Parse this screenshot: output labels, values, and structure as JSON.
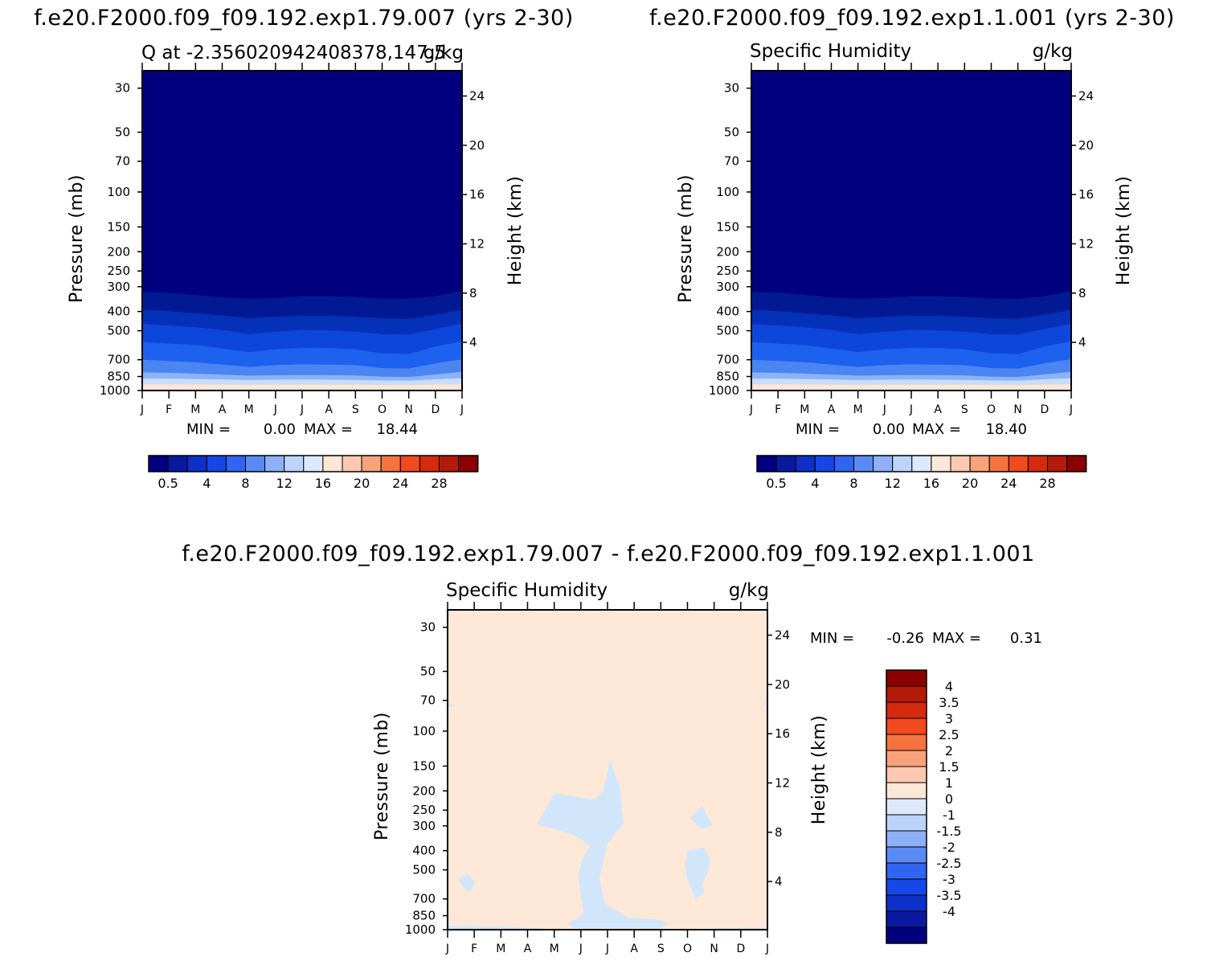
{
  "chart_data": [
    {
      "type": "heatmap",
      "title": "f.e20.F2000.f09_f09.192.exp1.79.007 (yrs 2-30)",
      "subtitle_left": "Q at -2.356020942408378,147.5",
      "subtitle_right": "g/kg",
      "xlabel": "",
      "ylabel": "Pressure (mb)",
      "ylabel_right": "Height (km)",
      "x_ticks": [
        "J",
        "F",
        "M",
        "A",
        "M",
        "J",
        "J",
        "A",
        "S",
        "O",
        "N",
        "D",
        "J"
      ],
      "y_ticks": [
        "30",
        "50",
        "70",
        "100",
        "150",
        "200",
        "250",
        "300",
        "400",
        "500",
        "700",
        "850",
        "1000"
      ],
      "y2_ticks": [
        "24",
        "20",
        "16",
        "12",
        "8",
        "4"
      ],
      "ylim": [
        1000,
        25
      ],
      "stats": {
        "min_label": "MIN =",
        "min": "0.00",
        "max_label": "MAX =",
        "max": "18.44"
      },
      "colorbar": {
        "orientation": "horizontal",
        "labels": [
          "0.5",
          "4",
          "8",
          "12",
          "16",
          "20",
          "24",
          "28"
        ]
      },
      "boundaries": [
        {
          "level": 0.5,
          "pressure": [
            318,
            322,
            330,
            340,
            345,
            342,
            335,
            335,
            338,
            344,
            345,
            335,
            315
          ]
        },
        {
          "level": 2,
          "pressure": [
            392,
            398,
            408,
            418,
            432,
            425,
            420,
            420,
            425,
            432,
            435,
            415,
            392
          ]
        },
        {
          "level": 4,
          "pressure": [
            462,
            470,
            480,
            495,
            520,
            505,
            495,
            497,
            505,
            520,
            522,
            490,
            460
          ]
        },
        {
          "level": 6,
          "pressure": [
            570,
            580,
            590,
            615,
            640,
            620,
            610,
            612,
            620,
            650,
            655,
            600,
            565
          ]
        },
        {
          "level": 8,
          "pressure": [
            700,
            710,
            720,
            740,
            760,
            745,
            738,
            740,
            745,
            770,
            775,
            730,
            695
          ]
        },
        {
          "level": 10,
          "pressure": [
            810,
            815,
            822,
            832,
            842,
            838,
            835,
            837,
            840,
            852,
            855,
            830,
            805
          ]
        },
        {
          "level": 12,
          "pressure": [
            870,
            872,
            875,
            880,
            885,
            882,
            880,
            882,
            884,
            890,
            892,
            878,
            868
          ]
        },
        {
          "level": 14,
          "pressure": [
            930,
            930,
            932,
            934,
            936,
            935,
            934,
            934,
            935,
            937,
            938,
            933,
            930
          ]
        },
        {
          "level": 16,
          "pressure": [
            978,
            979,
            979,
            980,
            981,
            981,
            980,
            981,
            981,
            982,
            982,
            980,
            978
          ]
        }
      ]
    },
    {
      "type": "heatmap",
      "title": "f.e20.F2000.f09_f09.192.exp1.1.001 (yrs 2-30)",
      "subtitle_left": "Specific Humidity",
      "subtitle_right": "g/kg",
      "xlabel": "",
      "ylabel": "Pressure (mb)",
      "ylabel_right": "Height (km)",
      "x_ticks": [
        "J",
        "F",
        "M",
        "A",
        "M",
        "J",
        "J",
        "A",
        "S",
        "O",
        "N",
        "D",
        "J"
      ],
      "y_ticks": [
        "30",
        "50",
        "70",
        "100",
        "150",
        "200",
        "250",
        "300",
        "400",
        "500",
        "700",
        "850",
        "1000"
      ],
      "y2_ticks": [
        "24",
        "20",
        "16",
        "12",
        "8",
        "4"
      ],
      "ylim": [
        1000,
        25
      ],
      "stats": {
        "min_label": "MIN =",
        "min": "0.00",
        "max_label": "MAX =",
        "max": "18.40"
      },
      "colorbar": {
        "orientation": "horizontal",
        "labels": [
          "0.5",
          "4",
          "8",
          "12",
          "16",
          "20",
          "24",
          "28"
        ]
      },
      "boundaries": [
        {
          "level": 0.5,
          "pressure": [
            318,
            322,
            330,
            340,
            345,
            342,
            335,
            335,
            338,
            344,
            345,
            335,
            315
          ]
        },
        {
          "level": 2,
          "pressure": [
            392,
            398,
            408,
            418,
            432,
            425,
            420,
            420,
            425,
            432,
            435,
            415,
            392
          ]
        },
        {
          "level": 4,
          "pressure": [
            462,
            470,
            480,
            495,
            520,
            505,
            495,
            497,
            505,
            520,
            522,
            490,
            460
          ]
        },
        {
          "level": 6,
          "pressure": [
            570,
            580,
            590,
            615,
            640,
            620,
            610,
            612,
            620,
            650,
            655,
            600,
            565
          ]
        },
        {
          "level": 8,
          "pressure": [
            700,
            710,
            720,
            740,
            760,
            745,
            738,
            740,
            745,
            770,
            775,
            730,
            695
          ]
        },
        {
          "level": 10,
          "pressure": [
            810,
            815,
            822,
            832,
            842,
            838,
            835,
            837,
            840,
            852,
            855,
            830,
            805
          ]
        },
        {
          "level": 12,
          "pressure": [
            870,
            872,
            875,
            880,
            885,
            882,
            880,
            882,
            884,
            890,
            892,
            878,
            868
          ]
        },
        {
          "level": 14,
          "pressure": [
            930,
            930,
            932,
            934,
            936,
            935,
            934,
            934,
            935,
            937,
            938,
            933,
            930
          ]
        },
        {
          "level": 16,
          "pressure": [
            978,
            979,
            979,
            980,
            981,
            981,
            980,
            981,
            981,
            982,
            982,
            980,
            978
          ]
        }
      ]
    },
    {
      "type": "heatmap",
      "title": "f.e20.F2000.f09_f09.192.exp1.79.007 - f.e20.F2000.f09_f09.192.exp1.1.001",
      "subtitle_left": "Specific Humidity",
      "subtitle_right": "g/kg",
      "xlabel": "",
      "ylabel": "Pressure (mb)",
      "ylabel_right": "Height (km)",
      "x_ticks": [
        "J",
        "F",
        "M",
        "A",
        "M",
        "J",
        "J",
        "A",
        "S",
        "O",
        "N",
        "D",
        "J"
      ],
      "y_ticks": [
        "30",
        "50",
        "70",
        "100",
        "150",
        "200",
        "250",
        "300",
        "400",
        "500",
        "700",
        "850",
        "1000"
      ],
      "y2_ticks": [
        "24",
        "20",
        "16",
        "12",
        "8",
        "4"
      ],
      "ylim": [
        1000,
        25
      ],
      "stats": {
        "min_label": "MIN =",
        "min": "-0.26",
        "max_label": "MAX =",
        "max": "0.31"
      },
      "colorbar": {
        "orientation": "vertical",
        "labels": [
          "4",
          "3.5",
          "3",
          "2.5",
          "2",
          "1.5",
          "1",
          "0",
          "-1",
          "-1.5",
          "-2",
          "-2.5",
          "-3",
          "-3.5",
          "-4"
        ]
      },
      "background_category": "0 to 1",
      "negative_regions": [
        {
          "points": [
            [
              3.35,
              295
            ],
            [
              4.0,
              205
            ],
            [
              5.5,
              222
            ],
            [
              5.85,
              200
            ],
            [
              6.1,
              140
            ],
            [
              6.45,
              190
            ],
            [
              6.6,
              290
            ],
            [
              6.0,
              370
            ],
            [
              5.7,
              550
            ],
            [
              5.9,
              740
            ],
            [
              6.8,
              870
            ],
            [
              7.9,
              890
            ],
            [
              8.35,
              930
            ],
            [
              7.9,
              985
            ],
            [
              4.7,
              985
            ],
            [
              4.5,
              930
            ],
            [
              4.85,
              880
            ],
            [
              5.1,
              820
            ],
            [
              5.0,
              680
            ],
            [
              4.9,
              540
            ],
            [
              5.05,
              440
            ],
            [
              5.35,
              380
            ],
            [
              5.0,
              350
            ],
            [
              4.6,
              330
            ],
            [
              4.0,
              310
            ]
          ]
        },
        {
          "points": [
            [
              9.1,
              275
            ],
            [
              9.55,
              238
            ],
            [
              9.95,
              300
            ],
            [
              9.5,
              312
            ]
          ]
        },
        {
          "points": [
            [
              9.0,
              400
            ],
            [
              9.6,
              385
            ],
            [
              9.85,
              440
            ],
            [
              9.75,
              520
            ],
            [
              9.55,
              590
            ],
            [
              9.65,
              650
            ],
            [
              9.3,
              700
            ],
            [
              9.0,
              560
            ],
            [
              8.9,
              470
            ]
          ]
        },
        {
          "points": [
            [
              0.4,
              560
            ],
            [
              0.75,
              520
            ],
            [
              1.05,
              580
            ],
            [
              0.85,
              640
            ],
            [
              0.55,
              610
            ]
          ]
        },
        {
          "points": [
            [
              0,
              72
            ],
            [
              0.3,
              74
            ],
            [
              0,
              76
            ]
          ]
        },
        {
          "points": [
            [
              11.8,
              73
            ],
            [
              12,
              71
            ],
            [
              12,
              75
            ]
          ]
        },
        {
          "points": [
            [
              0,
              950
            ],
            [
              0.8,
              958
            ],
            [
              2.2,
              968
            ],
            [
              3.6,
              982
            ],
            [
              3.2,
              998
            ],
            [
              0,
              998
            ]
          ]
        },
        {
          "points": [
            [
              10.0,
              982
            ],
            [
              11.5,
              976
            ],
            [
              12,
              970
            ],
            [
              12,
              998
            ],
            [
              10.0,
              998
            ]
          ]
        }
      ]
    }
  ]
}
